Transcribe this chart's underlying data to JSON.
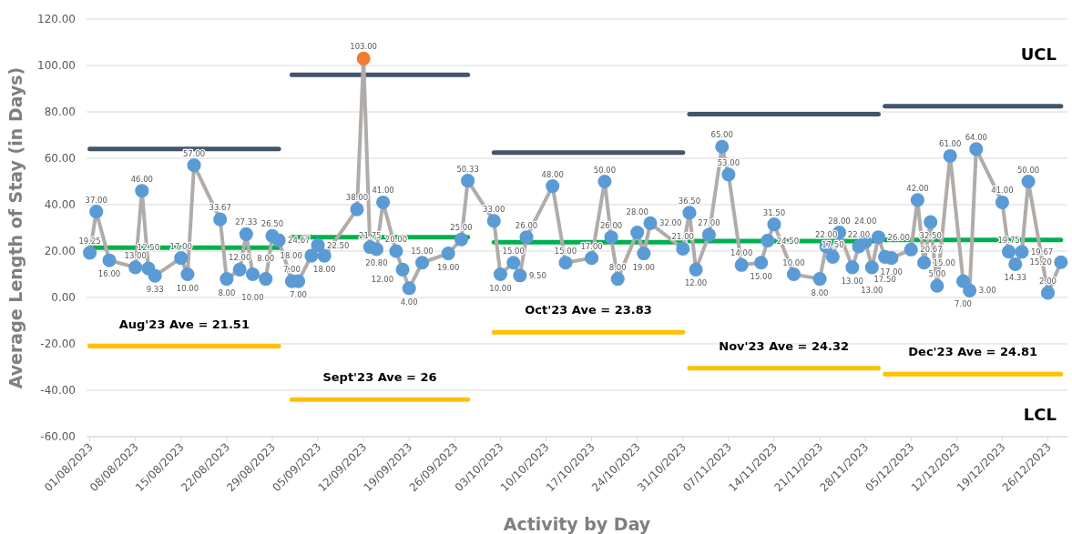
{
  "chart_data": {
    "type": "line",
    "xlabel": "Activity by Day",
    "ylabel": "Average Length of Stay (in Days)",
    "xlim": [
      "2023-07-31T12:00",
      "2023-12-29"
    ],
    "xticks": [
      {
        "value": "2023-08-01",
        "label": "01/08/2023"
      },
      {
        "value": "2023-08-08",
        "label": "08/08/2023"
      },
      {
        "value": "2023-08-15",
        "label": "15/08/2023"
      },
      {
        "value": "2023-08-22",
        "label": "22/08/2023"
      },
      {
        "value": "2023-08-29",
        "label": "29/08/2023"
      },
      {
        "value": "2023-09-05",
        "label": "05/09/2023"
      },
      {
        "value": "2023-09-12",
        "label": "12/09/2023"
      },
      {
        "value": "2023-09-19",
        "label": "19/09/2023"
      },
      {
        "value": "2023-09-26",
        "label": "26/09/2023"
      },
      {
        "value": "2023-10-03",
        "label": "03/10/2023"
      },
      {
        "value": "2023-10-10",
        "label": "10/10/2023"
      },
      {
        "value": "2023-10-17",
        "label": "17/10/2023"
      },
      {
        "value": "2023-10-24",
        "label": "24/10/2023"
      },
      {
        "value": "2023-10-31",
        "label": "31/10/2023"
      },
      {
        "value": "2023-11-07",
        "label": "07/11/2023"
      },
      {
        "value": "2023-11-14",
        "label": "14/11/2023"
      },
      {
        "value": "2023-11-21",
        "label": "21/11/2023"
      },
      {
        "value": "2023-11-28",
        "label": "28/11/2023"
      },
      {
        "value": "2023-12-05",
        "label": "05/12/2023"
      },
      {
        "value": "2023-12-12",
        "label": "12/12/2023"
      },
      {
        "value": "2023-12-19",
        "label": "19/12/2023"
      },
      {
        "value": "2023-12-26",
        "label": "26/12/2023"
      }
    ],
    "ylim": [
      -60,
      120
    ],
    "yticks": [
      {
        "value": 120,
        "label": "120.00"
      },
      {
        "value": 100,
        "label": "100.00"
      },
      {
        "value": 80,
        "label": "80.00"
      },
      {
        "value": 60,
        "label": "60.00"
      },
      {
        "value": 40,
        "label": "40.00"
      },
      {
        "value": 20,
        "label": "20.00"
      },
      {
        "value": 0,
        "label": "0.00"
      },
      {
        "value": -20,
        "label": "-20.00"
      },
      {
        "value": -40,
        "label": "-40.00"
      },
      {
        "value": -60,
        "label": "-60.00"
      }
    ],
    "grid": "y",
    "series": [
      {
        "color": "#b0aca9",
        "marker": "circle",
        "x": [
          "2023-08-01",
          "2023-08-02",
          "2023-08-04",
          "2023-08-08",
          "2023-08-09",
          "2023-08-10",
          "2023-08-11",
          "2023-08-15",
          "2023-08-16",
          "2023-08-17",
          "2023-08-21",
          "2023-08-22",
          "2023-08-24",
          "2023-08-25",
          "2023-08-26",
          "2023-08-28",
          "2023-08-29",
          "2023-08-30",
          "2023-09-01",
          "2023-09-02",
          "2023-09-04",
          "2023-09-05",
          "2023-09-06",
          "2023-09-11",
          "2023-09-12",
          "2023-09-13",
          "2023-09-14",
          "2023-09-15",
          "2023-09-17",
          "2023-09-18",
          "2023-09-19",
          "2023-09-21",
          "2023-09-25",
          "2023-09-27",
          "2023-09-28",
          "2023-10-02",
          "2023-10-03",
          "2023-10-05",
          "2023-10-06",
          "2023-10-07",
          "2023-10-11",
          "2023-10-13",
          "2023-10-17",
          "2023-10-19",
          "2023-10-20",
          "2023-10-21",
          "2023-10-24",
          "2023-10-25",
          "2023-10-26",
          "2023-10-31",
          "2023-11-01",
          "2023-11-02",
          "2023-11-04",
          "2023-11-06",
          "2023-11-07",
          "2023-11-09",
          "2023-11-12",
          "2023-11-13",
          "2023-11-14",
          "2023-11-17",
          "2023-11-21",
          "2023-11-22",
          "2023-11-23",
          "2023-11-24",
          "2023-11-26",
          "2023-11-27",
          "2023-11-28",
          "2023-11-29",
          "2023-11-30",
          "2023-12-01",
          "2023-12-02",
          "2023-12-05",
          "2023-12-06",
          "2023-12-07",
          "2023-12-08",
          "2023-12-09",
          "2023-12-11",
          "2023-12-13",
          "2023-12-14",
          "2023-12-15",
          "2023-12-19",
          "2023-12-20",
          "2023-12-21",
          "2023-12-22",
          "2023-12-23",
          "2023-12-26",
          "2023-12-28"
        ],
        "values": [
          19.25,
          37,
          16,
          13,
          46,
          12.5,
          9.33,
          17,
          10,
          57,
          33.67,
          8,
          12,
          27.33,
          10,
          8,
          26.5,
          24.67,
          7,
          7,
          18,
          22.5,
          18,
          38,
          103,
          21.75,
          20.8,
          41,
          20,
          12,
          4,
          15,
          19,
          25,
          50.33,
          33,
          10,
          15,
          9.5,
          26,
          48,
          15,
          17,
          50,
          26,
          8,
          28,
          19,
          32,
          21,
          36.5,
          12,
          27,
          65,
          53,
          14,
          15,
          24.5,
          31.5,
          10,
          8,
          22,
          17.5,
          28,
          13,
          22,
          24,
          13,
          26,
          17.5,
          17,
          20.67,
          42,
          15,
          32.5,
          5,
          61,
          7,
          3,
          64,
          41,
          19.75,
          14.33,
          19.67,
          50,
          2,
          15.2
        ],
        "value_labels": [
          "19.25",
          "37.00",
          "16.00",
          "13.00",
          "46.00",
          "12.50",
          "9.33",
          "17.00",
          "10.00",
          "57.00",
          "33.67",
          "8.00",
          "12.00",
          "27.33",
          "10.00",
          "8.00",
          "26.50",
          "24.67",
          "7.00",
          "7.00",
          "18.00",
          "22.50",
          "18.00",
          "38.00",
          "103.00",
          "21.75",
          "20.80",
          "41.00",
          "20.00",
          "12.00",
          "4.00",
          "15.00",
          "19.00",
          "25.00",
          "50.33",
          "33.00",
          "10.00",
          "15.00",
          "9.50",
          "26.00",
          "48.00",
          "15.00",
          "17.00",
          "50.00",
          "26.00",
          "8.00",
          "28.00",
          "19.00",
          "32.00",
          "21.00",
          "36.50",
          "12.00",
          "27.00",
          "65.00",
          "53.00",
          "14.00",
          "15.00",
          "24.50",
          "31.50",
          "10.00",
          "8.00",
          "22.00",
          "17.50",
          "28.00",
          "13.00",
          "22.00",
          "24.00",
          "13.00",
          "26.00",
          "17.50",
          "17.00",
          "20.67",
          "42.00",
          "15.00",
          "32.50",
          "5.00",
          "61.00",
          "7.00",
          "3.00",
          "64.00",
          "41.00",
          "19.75",
          "14.33",
          "19.67",
          "50.00",
          "2.00",
          "15.20"
        ],
        "colors": [
          "#5b9bd5",
          "#5b9bd5",
          "#5b9bd5",
          "#5b9bd5",
          "#5b9bd5",
          "#5b9bd5",
          "#5b9bd5",
          "#5b9bd5",
          "#5b9bd5",
          "#5b9bd5",
          "#5b9bd5",
          "#5b9bd5",
          "#5b9bd5",
          "#5b9bd5",
          "#5b9bd5",
          "#5b9bd5",
          "#5b9bd5",
          "#5b9bd5",
          "#5b9bd5",
          "#5b9bd5",
          "#5b9bd5",
          "#5b9bd5",
          "#5b9bd5",
          "#5b9bd5",
          "#ed7d31",
          "#5b9bd5",
          "#5b9bd5",
          "#5b9bd5",
          "#5b9bd5",
          "#5b9bd5",
          "#5b9bd5",
          "#5b9bd5",
          "#5b9bd5",
          "#5b9bd5",
          "#5b9bd5",
          "#5b9bd5",
          "#5b9bd5",
          "#5b9bd5",
          "#5b9bd5",
          "#5b9bd5",
          "#5b9bd5",
          "#5b9bd5",
          "#5b9bd5",
          "#5b9bd5",
          "#5b9bd5",
          "#5b9bd5",
          "#5b9bd5",
          "#5b9bd5",
          "#5b9bd5",
          "#5b9bd5",
          "#5b9bd5",
          "#5b9bd5",
          "#5b9bd5",
          "#5b9bd5",
          "#5b9bd5",
          "#5b9bd5",
          "#5b9bd5",
          "#5b9bd5",
          "#5b9bd5",
          "#5b9bd5",
          "#5b9bd5",
          "#5b9bd5",
          "#5b9bd5",
          "#5b9bd5",
          "#5b9bd5",
          "#5b9bd5",
          "#5b9bd5",
          "#5b9bd5",
          "#5b9bd5",
          "#5b9bd5",
          "#5b9bd5",
          "#5b9bd5",
          "#5b9bd5",
          "#5b9bd5",
          "#5b9bd5",
          "#5b9bd5",
          "#5b9bd5",
          "#5b9bd5",
          "#5b9bd5",
          "#5b9bd5",
          "#5b9bd5",
          "#5b9bd5",
          "#5b9bd5",
          "#5b9bd5",
          "#5b9bd5",
          "#5b9bd5",
          "#5b9bd5"
        ]
      },
      {
        "type": "line",
        "color": "#44546a",
        "marker": "none",
        "x": [
          "2023-08-01",
          "2023-08-30"
        ],
        "values": [
          64,
          64
        ]
      },
      {
        "type": "line",
        "color": "#00b050",
        "marker": "none",
        "x": [
          "2023-08-01",
          "2023-08-30"
        ],
        "values": [
          21.51,
          21.51
        ]
      },
      {
        "type": "line",
        "color": "#ffc000",
        "marker": "none",
        "x": [
          "2023-08-01",
          "2023-08-30"
        ],
        "values": [
          -21,
          -21
        ]
      },
      {
        "type": "line",
        "color": "#44546a",
        "marker": "none",
        "x": [
          "2023-09-01",
          "2023-09-28"
        ],
        "values": [
          96,
          96
        ]
      },
      {
        "type": "line",
        "color": "#00b050",
        "marker": "none",
        "x": [
          "2023-09-01",
          "2023-09-28"
        ],
        "values": [
          26,
          26
        ]
      },
      {
        "type": "line",
        "color": "#ffc000",
        "marker": "none",
        "x": [
          "2023-09-01",
          "2023-09-28"
        ],
        "values": [
          -44,
          -44
        ]
      },
      {
        "type": "line",
        "color": "#44546a",
        "marker": "none",
        "x": [
          "2023-10-02",
          "2023-10-31"
        ],
        "values": [
          62.5,
          62.5
        ]
      },
      {
        "type": "line",
        "color": "#00b050",
        "marker": "none",
        "x": [
          "2023-10-02",
          "2023-10-31"
        ],
        "values": [
          23.83,
          23.83
        ]
      },
      {
        "type": "line",
        "color": "#ffc000",
        "marker": "none",
        "x": [
          "2023-10-02",
          "2023-10-31"
        ],
        "values": [
          -15,
          -15
        ]
      },
      {
        "type": "line",
        "color": "#44546a",
        "marker": "none",
        "x": [
          "2023-11-01",
          "2023-11-30"
        ],
        "values": [
          79,
          79
        ]
      },
      {
        "type": "line",
        "color": "#00b050",
        "marker": "none",
        "x": [
          "2023-11-01",
          "2023-11-30"
        ],
        "values": [
          24.32,
          24.32
        ]
      },
      {
        "type": "line",
        "color": "#ffc000",
        "marker": "none",
        "x": [
          "2023-11-01",
          "2023-11-30"
        ],
        "values": [
          -30.5,
          -30.5
        ]
      },
      {
        "type": "line",
        "color": "#44546a",
        "marker": "none",
        "x": [
          "2023-12-01",
          "2023-12-28"
        ],
        "values": [
          82.5,
          82.5
        ]
      },
      {
        "type": "line",
        "color": "#00b050",
        "marker": "none",
        "x": [
          "2023-12-01",
          "2023-12-28"
        ],
        "values": [
          24.81,
          24.81
        ]
      },
      {
        "type": "line",
        "color": "#ffc000",
        "marker": "none",
        "x": [
          "2023-12-01",
          "2023-12-28"
        ],
        "values": [
          -33,
          -33
        ]
      }
    ],
    "annotations": [
      "Aug'23 Ave = 21.51",
      "Sept'23 Ave = 26",
      "Oct'23 Ave = 23.83",
      "Nov'23 Ave = 24.32",
      "Dec'23 Ave = 24.81",
      "UCL",
      "LCL"
    ]
  }
}
